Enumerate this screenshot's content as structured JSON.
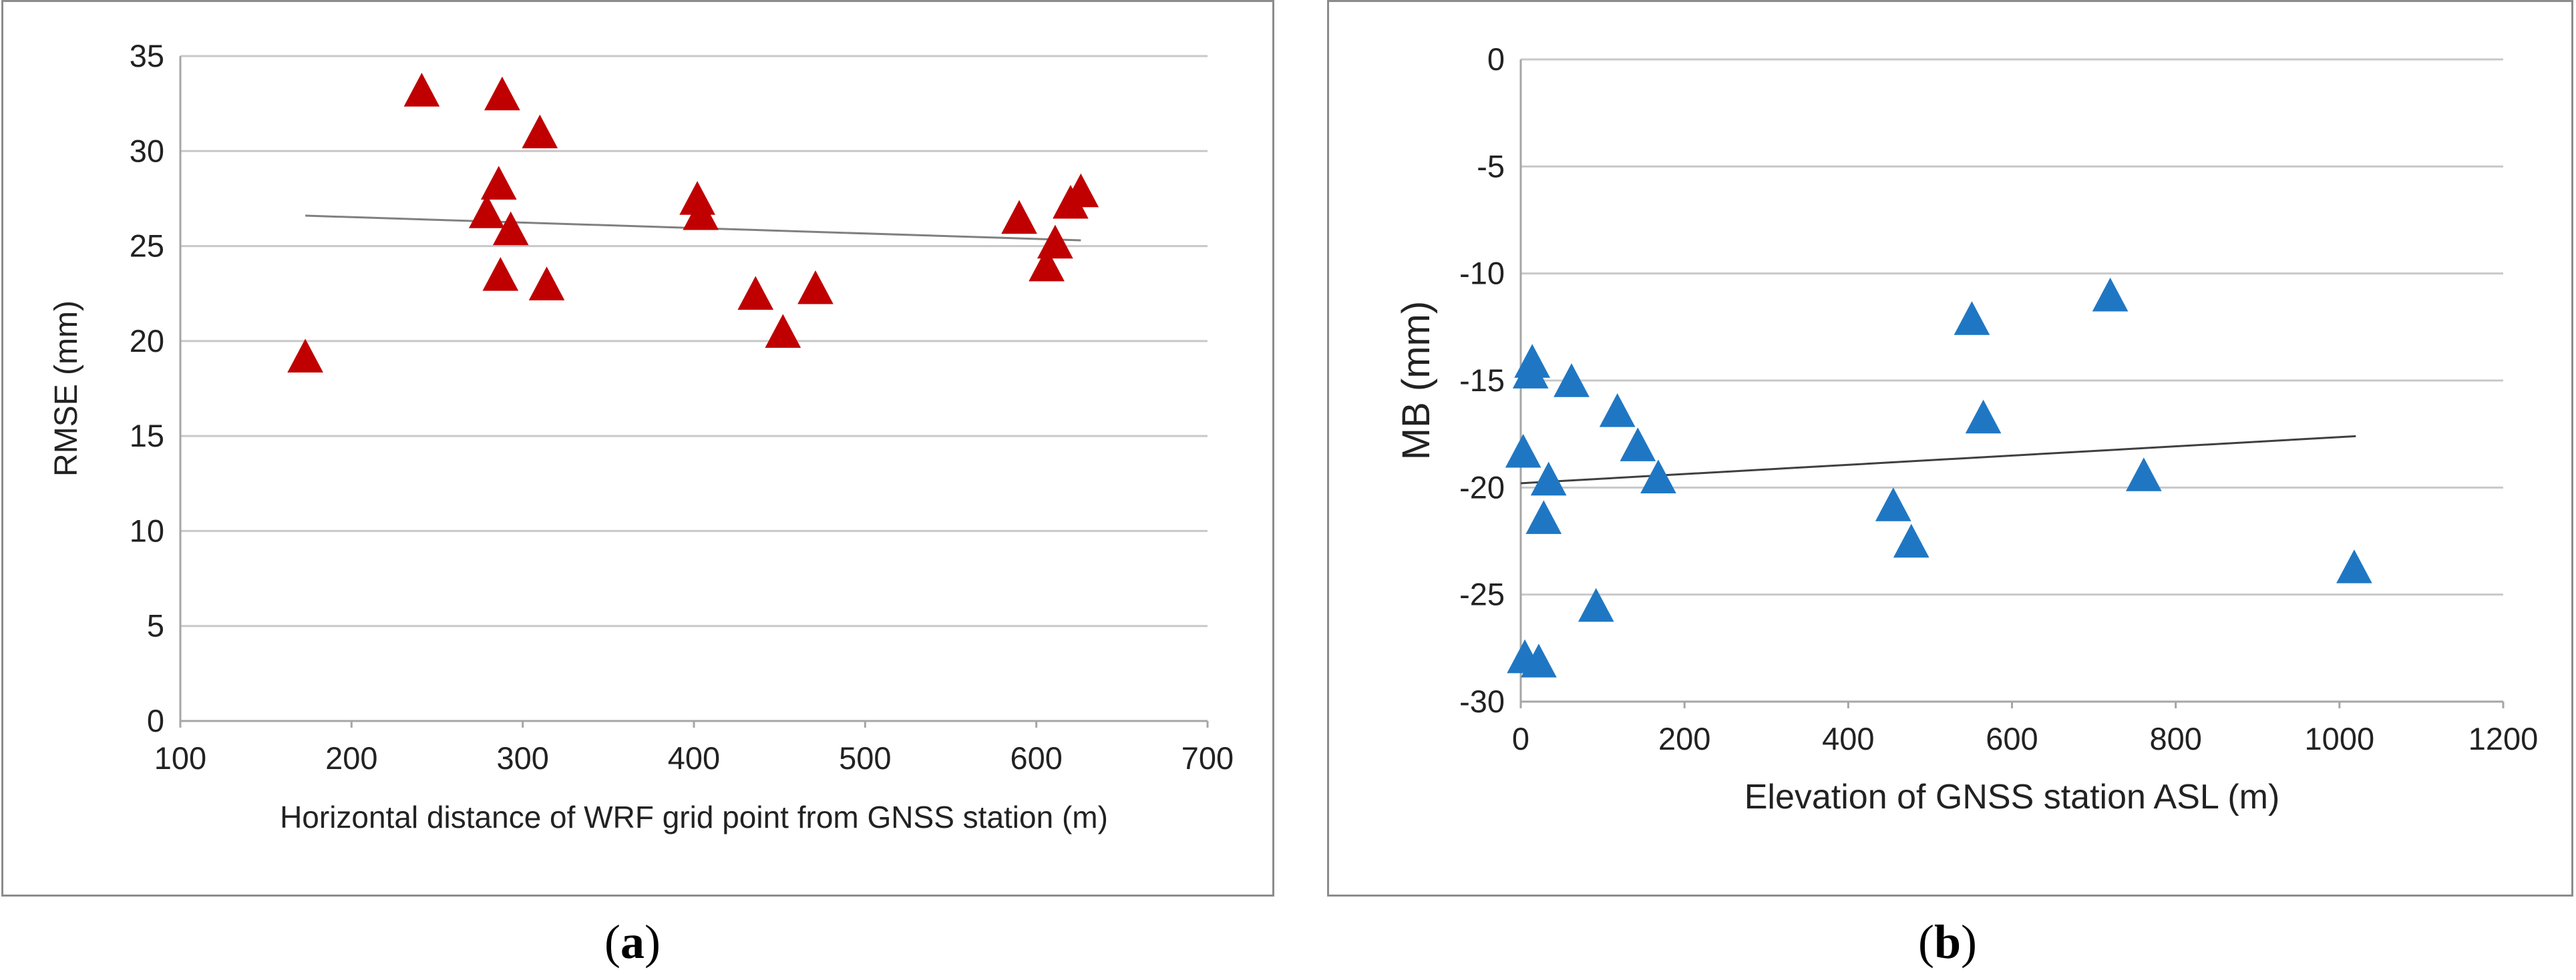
{
  "chart_data": [
    {
      "type": "scatter",
      "panel_label": "a",
      "xlabel": "Horizontal distance of WRF grid point from GNSS station (m)",
      "ylabel": "RMSE (mm)",
      "xlim": [
        100,
        700
      ],
      "ylim": [
        0,
        35
      ],
      "xticks": [
        100,
        200,
        300,
        400,
        500,
        600,
        700
      ],
      "yticks": [
        0,
        5,
        10,
        15,
        20,
        25,
        30,
        35
      ],
      "grid": "horizontal",
      "marker": "triangle",
      "color": "#c00000",
      "series": [
        {
          "name": "RMSE",
          "x": [
            173,
            241,
            288,
            279,
            286,
            293,
            287,
            310,
            314,
            402,
            404,
            436,
            452,
            471,
            590,
            606,
            611,
            620,
            626
          ],
          "y": [
            19.1,
            33.1,
            32.9,
            26.7,
            28.2,
            25.8,
            23.4,
            30.9,
            22.9,
            27.4,
            26.6,
            22.4,
            20.4,
            22.7,
            26.4,
            23.9,
            25.1,
            27.2,
            27.8
          ]
        }
      ],
      "trendline": {
        "x": [
          173,
          626
        ],
        "y": [
          26.6,
          25.3
        ],
        "color": "#808080"
      }
    },
    {
      "type": "scatter",
      "panel_label": "b",
      "xlabel": "Elevation of GNSS station ASL (m)",
      "ylabel": "MB (mm)",
      "xlim": [
        0,
        1200
      ],
      "ylim": [
        -30,
        0
      ],
      "xticks": [
        0,
        200,
        400,
        600,
        800,
        1000,
        1200
      ],
      "yticks": [
        0,
        -5,
        -10,
        -15,
        -20,
        -25,
        -30
      ],
      "grid": "horizontal",
      "marker": "triangle",
      "color": "#1f77c4",
      "series": [
        {
          "name": "MB",
          "x": [
            3,
            5,
            12,
            14,
            22,
            28,
            34,
            62,
            92,
            118,
            143,
            168,
            455,
            477,
            551,
            565,
            720,
            761,
            1018
          ],
          "y": [
            -18.4,
            -28.0,
            -14.7,
            -14.2,
            -28.2,
            -21.5,
            -19.7,
            -15.1,
            -25.6,
            -16.5,
            -18.1,
            -19.6,
            -20.9,
            -22.6,
            -12.2,
            -16.8,
            -11.1,
            -19.5,
            -23.8
          ]
        }
      ],
      "trendline": {
        "x": [
          0,
          1020
        ],
        "y": [
          -19.8,
          -17.6
        ],
        "color": "#404040"
      }
    }
  ]
}
